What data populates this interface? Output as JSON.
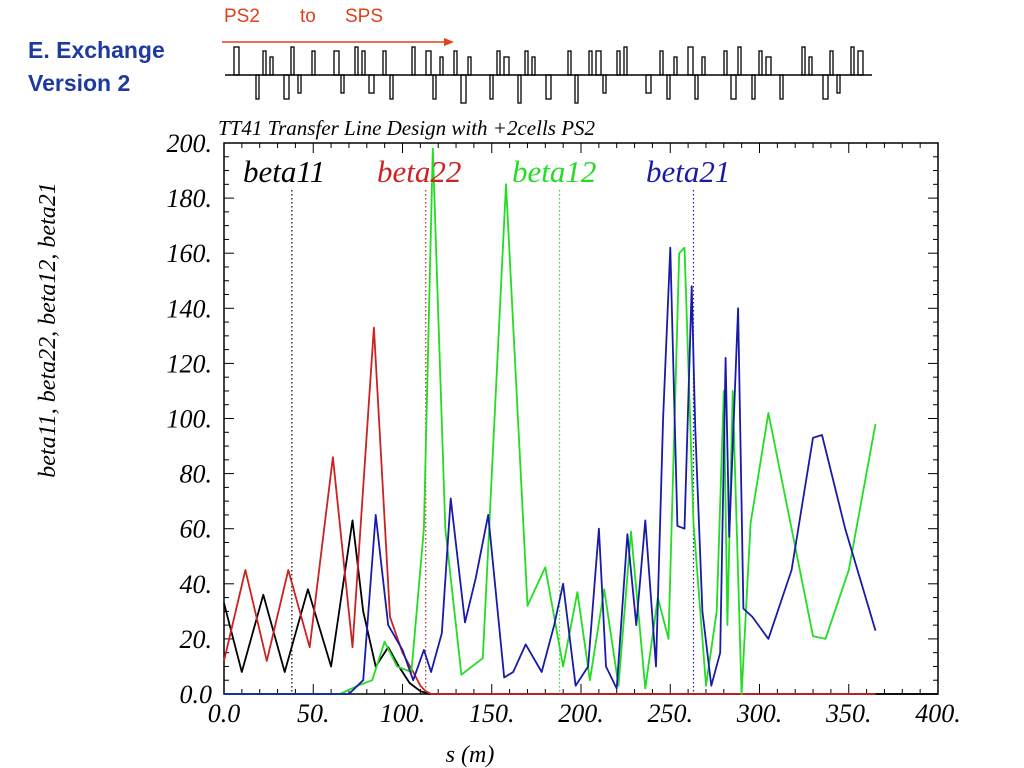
{
  "slide": {
    "title_line1": "E. Exchange",
    "title_line2": "Version 2"
  },
  "lattice": {
    "from_label": "PS2",
    "to_word": "to",
    "to_label": "SPS",
    "arrow_color": "#e0401a"
  },
  "chart_data": {
    "type": "line",
    "title": "TT41 Transfer Line Design with +2cells PS2",
    "xlabel": "s (m)",
    "ylabel": "beta11, beta22, beta12, beta21",
    "xlim": [
      0,
      400
    ],
    "ylim": [
      0,
      200
    ],
    "x_ticks": [
      "0.0",
      "50.",
      "100.",
      "150.",
      "200.",
      "250.",
      "300.",
      "350.",
      "400."
    ],
    "y_ticks": [
      "0.0",
      "20.",
      "40.",
      "60.",
      "80.",
      "100.",
      "120.",
      "140.",
      "160.",
      "180.",
      "200."
    ],
    "grid": false,
    "legend_placement": "top inside plot",
    "series": [
      {
        "name": "beta11",
        "color": "#000000",
        "marker_x": 38,
        "x": [
          0,
          10,
          22,
          34,
          47,
          60,
          72,
          78,
          85,
          92,
          98,
          104,
          110,
          115,
          400
        ],
        "y": [
          33,
          8,
          36,
          8,
          38,
          10,
          63,
          30,
          10,
          17,
          10,
          4,
          1,
          0,
          0
        ]
      },
      {
        "name": "beta22",
        "color": "#cc2222",
        "marker_x": 113,
        "x": [
          0,
          12,
          24,
          36,
          48,
          61,
          72,
          84,
          93,
          100,
          106,
          110,
          113,
          116,
          365
        ],
        "y": [
          12,
          45,
          12,
          45,
          17,
          86,
          17,
          133,
          28,
          15,
          8,
          3,
          1,
          0,
          0
        ]
      },
      {
        "name": "beta12",
        "color": "#22dd22",
        "marker_x": 188,
        "x": [
          0,
          65,
          75,
          83,
          90,
          97,
          105,
          112,
          117,
          124,
          133,
          145,
          158,
          170,
          180,
          190,
          198,
          205,
          213,
          221,
          228,
          236,
          243,
          249,
          255,
          258,
          263,
          270,
          276,
          280,
          282,
          285,
          290,
          295,
          305,
          318,
          330,
          337,
          350,
          365
        ],
        "y": [
          0,
          0,
          3,
          5,
          19,
          10,
          8,
          60,
          198,
          60,
          7,
          13,
          185,
          32,
          46,
          10,
          37,
          5,
          38,
          3,
          59,
          2,
          35,
          20,
          160,
          162,
          62,
          3,
          30,
          110,
          25,
          110,
          0,
          62,
          102,
          60,
          21,
          20,
          45,
          98
        ]
      },
      {
        "name": "beta21",
        "color": "#1a1aa8",
        "marker_x": 263,
        "x": [
          0,
          70,
          78,
          85,
          92,
          100,
          106,
          112,
          116,
          122,
          127,
          135,
          141,
          148,
          157,
          162,
          169,
          178,
          185,
          190,
          197,
          204,
          210,
          214,
          220,
          226,
          231,
          236,
          242,
          246,
          250,
          254,
          258,
          262,
          264,
          268,
          273,
          278,
          281,
          283,
          288,
          291,
          296,
          305,
          318,
          330,
          335,
          348,
          365
        ],
        "y": [
          0,
          0,
          5,
          65,
          25,
          16,
          5,
          16,
          8,
          22,
          71,
          26,
          42,
          65,
          6,
          8,
          18,
          8,
          25,
          40,
          3,
          10,
          60,
          10,
          2,
          58,
          25,
          63,
          10,
          100,
          162,
          61,
          60,
          148,
          97,
          30,
          3,
          15,
          122,
          57,
          140,
          31,
          28,
          20,
          45,
          93,
          94,
          60,
          23
        ]
      }
    ]
  }
}
